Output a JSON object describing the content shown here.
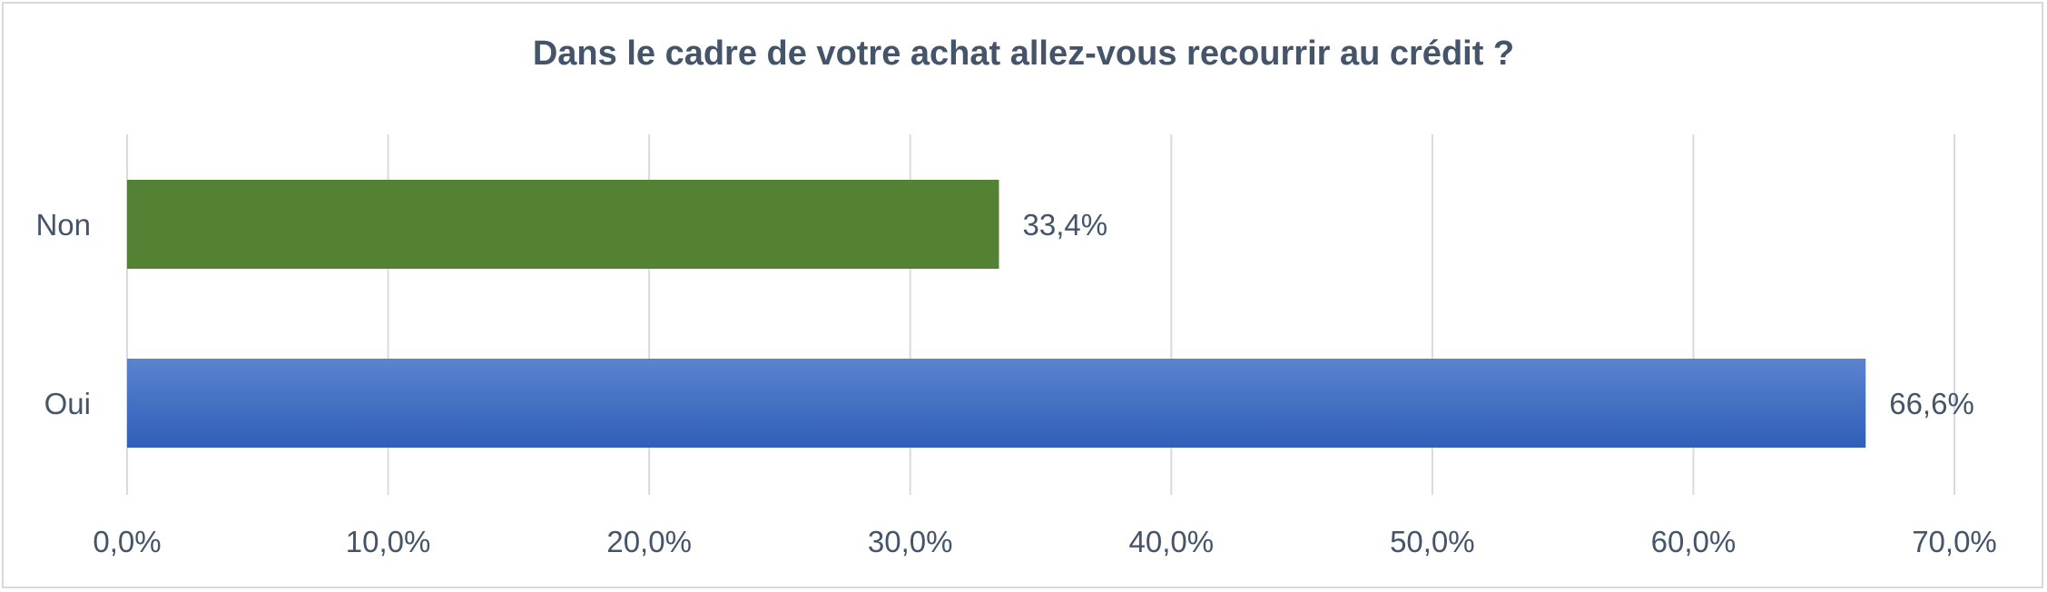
{
  "chart_data": {
    "type": "bar",
    "orientation": "horizontal",
    "title": "Dans le cadre de votre achat allez-vous recourrir au crédit ?",
    "categories": [
      "Non",
      "Oui"
    ],
    "values": [
      33.4,
      66.6
    ],
    "data_labels": [
      "33,4%",
      "66,6%"
    ],
    "bar_colors": [
      "#548235",
      "#4472c4"
    ],
    "xlim": [
      0,
      70
    ],
    "x_ticks": [
      0,
      10,
      20,
      30,
      40,
      50,
      60,
      70
    ],
    "x_tick_labels": [
      "0,0%",
      "10,0%",
      "20,0%",
      "30,0%",
      "40,0%",
      "50,0%",
      "60,0%",
      "70,0%"
    ],
    "grid": true,
    "legend": "none"
  },
  "colors": {
    "text": "#44546a",
    "grid": "#d9d9e3",
    "border": "#d9d9d9"
  }
}
